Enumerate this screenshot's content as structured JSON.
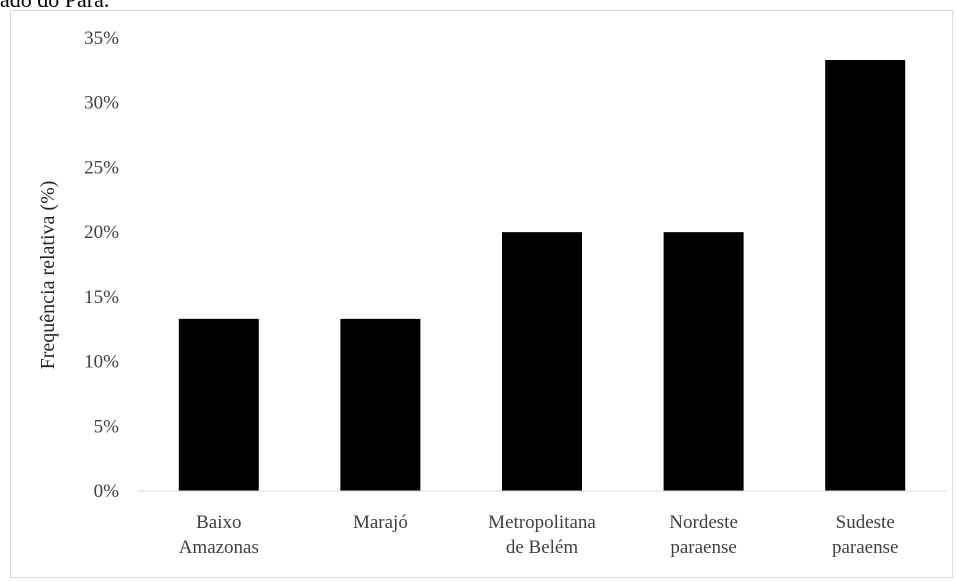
{
  "caption": "ado do Pará.",
  "chart_data": {
    "type": "bar",
    "categories": [
      [
        "Baixo",
        "Amazonas"
      ],
      [
        "Marajó"
      ],
      [
        "Metropolitana",
        "de Belém"
      ],
      [
        "Nordeste",
        "paraense"
      ],
      [
        "Sudeste",
        "paraense"
      ]
    ],
    "values": [
      13.3,
      13.3,
      20.0,
      20.0,
      33.3
    ],
    "ylabel": "Frequência relativa (%)",
    "ylim": [
      0,
      35
    ],
    "yticks": [
      0,
      5,
      10,
      15,
      20,
      25,
      30,
      35
    ],
    "ytick_labels": [
      "0%",
      "5%",
      "10%",
      "15%",
      "20%",
      "25%",
      "30%",
      "35%"
    ],
    "bar_color": "#000000",
    "grid": false,
    "legend": "none"
  }
}
